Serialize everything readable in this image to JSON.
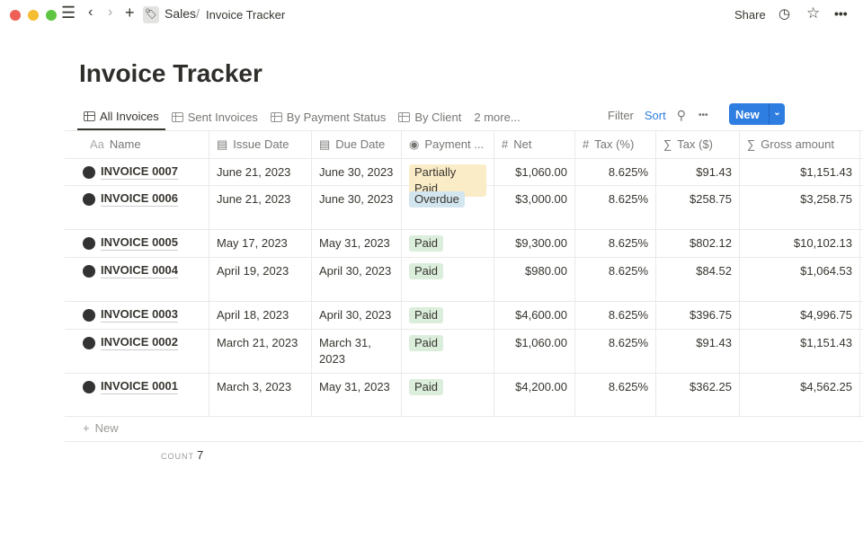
{
  "window": {
    "colors": {
      "close": "#ed5f57",
      "minimize": "#f5bd31",
      "maximize": "#5dc542"
    }
  },
  "breadcrumb": {
    "parent": "Sales",
    "separator": "/",
    "current": "Invoice Tracker"
  },
  "topbar": {
    "share": "Share"
  },
  "page": {
    "title": "Invoice Tracker"
  },
  "tabs": [
    {
      "label": "All Invoices",
      "active": true
    },
    {
      "label": "Sent Invoices"
    },
    {
      "label": "By Payment Status"
    },
    {
      "label": "By Client"
    }
  ],
  "more_tabs": "2 more...",
  "toolbar": {
    "filter": "Filter",
    "sort": "Sort",
    "new": "New",
    "accent": "#2e7de1"
  },
  "columns": [
    {
      "icon": "Aa",
      "label": "Name"
    },
    {
      "icon": "calendar",
      "label": "Issue Date"
    },
    {
      "icon": "calendar",
      "label": "Due Date"
    },
    {
      "icon": "select",
      "label": "Payment ..."
    },
    {
      "icon": "#",
      "label": "Net"
    },
    {
      "icon": "#",
      "label": "Tax (%)"
    },
    {
      "icon": "∑",
      "label": "Tax ($)"
    },
    {
      "icon": "∑",
      "label": "Gross amount"
    }
  ],
  "rows": [
    {
      "name": "INVOICE 0007",
      "issue": "June 21, 2023",
      "due": "June 30, 2023",
      "status": "Partially Paid",
      "net": "$1,060.00",
      "taxp": "8.625%",
      "tax": "$91.43",
      "gross": "$1,151.43"
    },
    {
      "name": "INVOICE 0006",
      "issue": "June 21, 2023",
      "due": "June 30, 2023",
      "status": "Overdue",
      "net": "$3,000.00",
      "taxp": "8.625%",
      "tax": "$258.75",
      "gross": "$3,258.75"
    },
    {
      "name": "INVOICE 0005",
      "issue": "May 17, 2023",
      "due": "May 31, 2023",
      "status": "Paid",
      "net": "$9,300.00",
      "taxp": "8.625%",
      "tax": "$802.12",
      "gross": "$10,102.13"
    },
    {
      "name": "INVOICE 0004",
      "issue": "April 19, 2023",
      "due": "April 30, 2023",
      "status": "Paid",
      "net": "$980.00",
      "taxp": "8.625%",
      "tax": "$84.52",
      "gross": "$1,064.53"
    },
    {
      "name": "INVOICE 0003",
      "issue": "April 18, 2023",
      "due": "April 30, 2023",
      "status": "Paid",
      "net": "$4,600.00",
      "taxp": "8.625%",
      "tax": "$396.75",
      "gross": "$4,996.75"
    },
    {
      "name": "INVOICE 0002",
      "issue": "March 21, 2023",
      "due": "March 31, 2023",
      "status": "Paid",
      "net": "$1,060.00",
      "taxp": "8.625%",
      "tax": "$91.43",
      "gross": "$1,151.43"
    },
    {
      "name": "INVOICE 0001",
      "issue": "March 3, 2023",
      "due": "May 31, 2023",
      "status": "Paid",
      "net": "$4,200.00",
      "taxp": "8.625%",
      "tax": "$362.25",
      "gross": "$4,562.25"
    }
  ],
  "status_colors": {
    "Partially Paid": "#fbecc8",
    "Overdue": "#d3e5ef",
    "Paid": "#dbeddb"
  },
  "footer": {
    "new_row": "New",
    "count_label": "COUNT",
    "count_value": "7"
  }
}
